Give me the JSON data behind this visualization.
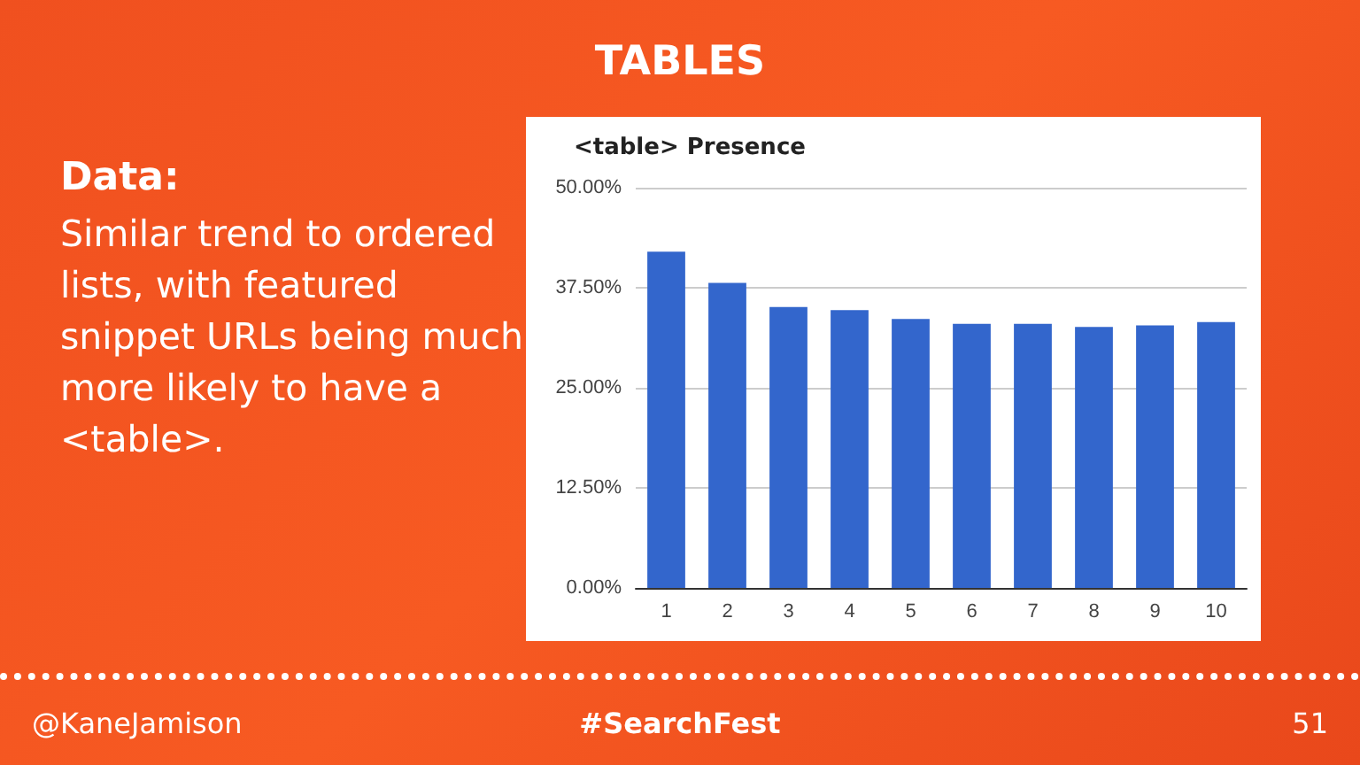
{
  "chart_data": {
    "type": "bar",
    "title": "<table> Presence",
    "categories": [
      "1",
      "2",
      "3",
      "4",
      "5",
      "6",
      "7",
      "8",
      "9",
      "10"
    ],
    "values": [
      42.0,
      38.1,
      35.1,
      34.7,
      33.6,
      33.0,
      33.0,
      32.6,
      32.8,
      33.2
    ],
    "color": "#3366cc",
    "ylim": [
      0,
      50
    ],
    "yticks": [
      {
        "value": 0,
        "label": "0.00%"
      },
      {
        "value": 12.5,
        "label": "12.50%"
      },
      {
        "value": 25,
        "label": "25.00%"
      },
      {
        "value": 37.5,
        "label": "37.50%"
      },
      {
        "value": 50,
        "label": "50.00%"
      }
    ],
    "grid": "y",
    "annotations": [
      "TABLES",
      "Data:",
      "Similar trend to ordered lists, with featured snippet URLs being much more likely to have a <table>.",
      "@KaneJamison",
      "#SearchFest",
      "51"
    ]
  }
}
